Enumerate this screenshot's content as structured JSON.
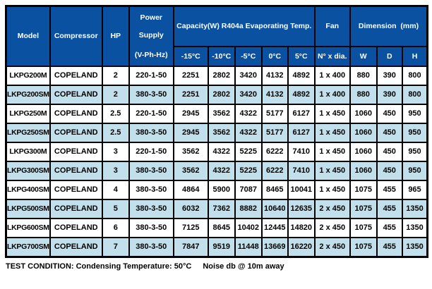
{
  "colors": {
    "header_bg": "#0b51a1",
    "row_bg": "#ffffff",
    "row_alt_bg": "#c1e0eb",
    "border": "#000000"
  },
  "table": {
    "header": {
      "model": "Model",
      "compressor": "Compressor",
      "hp": "HP",
      "power_supply_lines": [
        "Power",
        "Supply",
        "(V-Ph-Hz)"
      ],
      "capacity_group": "Capacity(W) R404a Evaporating Temp.",
      "capacity_cols": [
        "-15°C",
        "-10°C",
        "-5°C",
        "0°C",
        "5°C"
      ],
      "fan_group": "Fan",
      "fan_col": "N° x dia.",
      "dimension_group": "Dimension  (mm)",
      "dimension_cols": [
        "W",
        "D",
        "H"
      ]
    },
    "column_keys": [
      "model",
      "compressor",
      "hp",
      "power-supply",
      "capacity-minus15c",
      "capacity-minus10c",
      "capacity-minus5c",
      "capacity-0c",
      "capacity-5c",
      "fan",
      "dim-w",
      "dim-d",
      "dim-h"
    ],
    "rows": [
      [
        "LKPG200M",
        "COPELAND",
        "2",
        "220-1-50",
        "2251",
        "2802",
        "3420",
        "4132",
        "4892",
        "1 x 400",
        "880",
        "390",
        "800"
      ],
      [
        "LKPG200SM",
        "COPELAND",
        "2",
        "380-3-50",
        "2251",
        "2802",
        "3420",
        "4132",
        "4892",
        "1 x 400",
        "880",
        "390",
        "800"
      ],
      [
        "LKPG250M",
        "COPELAND",
        "2.5",
        "220-1-50",
        "2945",
        "3562",
        "4322",
        "5177",
        "6127",
        "1 x 450",
        "1060",
        "450",
        "950"
      ],
      [
        "LKPG250SM",
        "COPELAND",
        "2.5",
        "380-3-50",
        "2945",
        "3562",
        "4322",
        "5177",
        "6127",
        "1 x 450",
        "1060",
        "450",
        "950"
      ],
      [
        "LKPG300M",
        "COPELAND",
        "3",
        "220-1-50",
        "3562",
        "4322",
        "5225",
        "6222",
        "7410",
        "1 x 450",
        "1060",
        "450",
        "950"
      ],
      [
        "LKPG300SM",
        "COPELAND",
        "3",
        "380-3-50",
        "3562",
        "4322",
        "5225",
        "6222",
        "7410",
        "1 x 450",
        "1060",
        "450",
        "950"
      ],
      [
        "LKPG400SM",
        "COPELAND",
        "4",
        "380-3-50",
        "4864",
        "5900",
        "7087",
        "8465",
        "10041",
        "1 x 450",
        "1075",
        "455",
        "965"
      ],
      [
        "LKPG500SM",
        "COPELAND",
        "5",
        "380-3-50",
        "6032",
        "7362",
        "8882",
        "10640",
        "12635",
        "2 x 450",
        "1075",
        "455",
        "1350"
      ],
      [
        "LKPG600SM",
        "COPELAND",
        "6",
        "380-3-50",
        "7125",
        "8645",
        "10402",
        "12445",
        "14820",
        "2 x 450",
        "1075",
        "455",
        "1350"
      ],
      [
        "LKPG700SM",
        "COPELAND",
        "7",
        "380-3-50",
        "7847",
        "9519",
        "11448",
        "13669",
        "16220",
        "2 x 450",
        "1075",
        "455",
        "1350"
      ]
    ]
  },
  "footer": {
    "test_condition": "TEST CONDITION: Condensing Temperature: 50°C",
    "noise": "Noise db @ 10m away"
  }
}
